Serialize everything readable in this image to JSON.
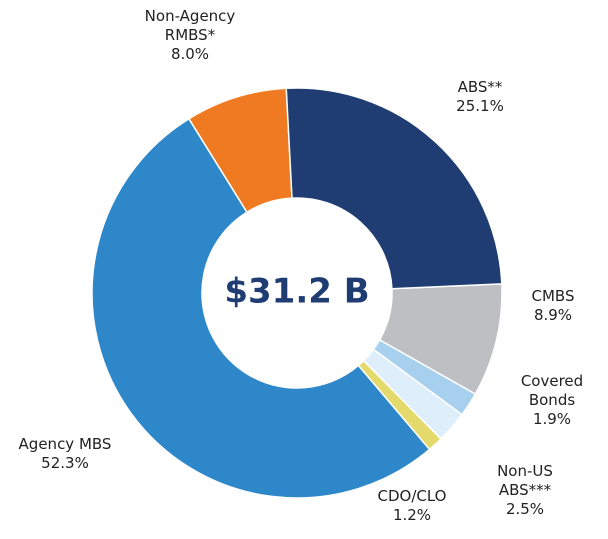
{
  "chart_data": {
    "type": "donut",
    "center_label": "$31.2 B",
    "categories": [
      "ABS**",
      "CMBS",
      "Covered Bonds",
      "Non-US ABS***",
      "CDO/CLO",
      "Agency MBS",
      "Non-Agency RMBS*"
    ],
    "values": [
      25.1,
      8.9,
      1.9,
      2.5,
      1.2,
      52.3,
      8.0
    ],
    "value_labels": [
      "25.1%",
      "8.9%",
      "1.9%",
      "2.5%",
      "1.2%",
      "52.3%",
      "8.0%"
    ],
    "colors": [
      "#1f3d73",
      "#bebfc3",
      "#a7cfee",
      "#deeffb",
      "#e4da6c",
      "#2e87c9",
      "#f07a22"
    ]
  }
}
